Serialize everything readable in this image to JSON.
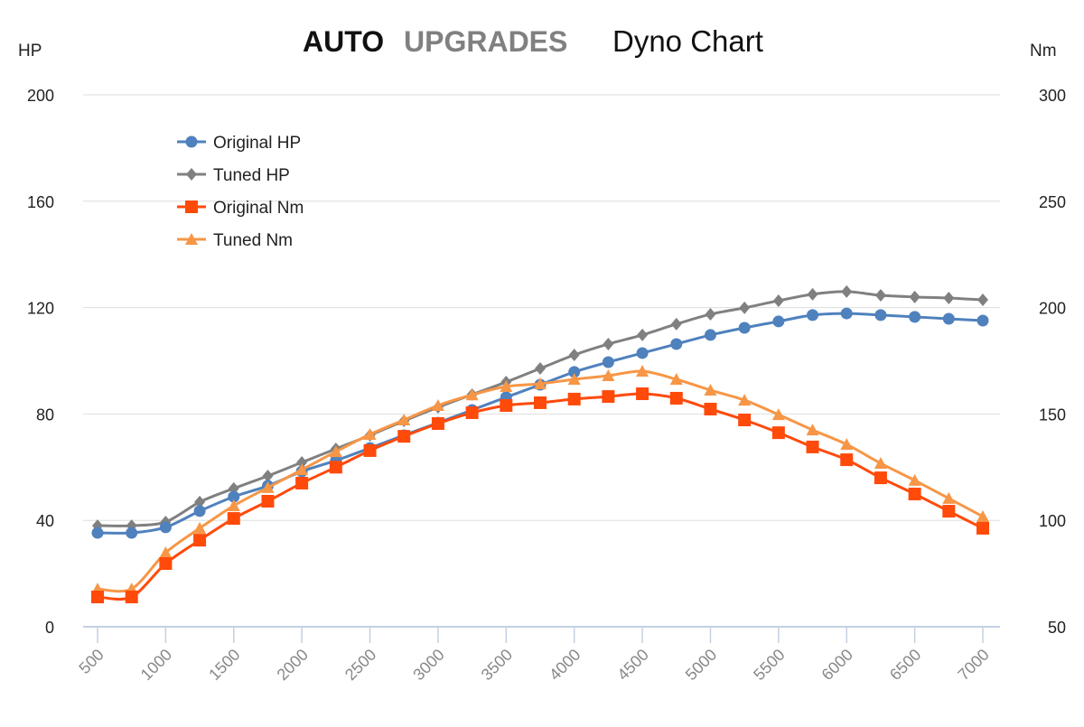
{
  "chart_data": {
    "type": "line",
    "title": {
      "brand_bold": "AUTO",
      "brand_light": "UPGRADES",
      "text": "Dyno Chart"
    },
    "y_left": {
      "label": "HP",
      "range": [
        0,
        200
      ],
      "ticks": [
        0,
        40,
        80,
        120,
        160,
        200
      ]
    },
    "y_right": {
      "label": "Nm",
      "range": [
        50,
        300
      ],
      "ticks": [
        50,
        100,
        150,
        200,
        250,
        300
      ]
    },
    "x": [
      500,
      750,
      1000,
      1250,
      1500,
      1750,
      2000,
      2250,
      2500,
      2750,
      3000,
      3250,
      3500,
      3750,
      4000,
      4250,
      4500,
      4750,
      5000,
      5250,
      5500,
      5750,
      6000,
      6250,
      6500,
      6750,
      7000
    ],
    "x_ticks": [
      500,
      1000,
      1500,
      2000,
      2500,
      3000,
      3500,
      4000,
      4500,
      5000,
      5500,
      6000,
      6500,
      7000
    ],
    "grid": true,
    "legend_position": "top-left",
    "series": [
      {
        "name": "Original HP",
        "axis": "left",
        "marker": "circle",
        "color": "#4f81bd",
        "values": [
          35.3,
          35.3,
          37.4,
          43.5,
          48.9,
          53,
          58.4,
          62.5,
          67.2,
          72,
          76.7,
          81.5,
          86.3,
          91,
          95.8,
          99.5,
          102.9,
          106.3,
          109.7,
          112.4,
          114.8,
          117.2,
          117.8,
          117.2,
          116.5,
          115.8,
          115.1
        ]
      },
      {
        "name": "Tuned HP",
        "axis": "left",
        "marker": "diamond",
        "color": "#808080",
        "values": [
          38,
          38,
          39.4,
          46.9,
          52,
          56.7,
          61.8,
          66.9,
          72,
          77.4,
          82.5,
          87.3,
          92,
          97.1,
          102.2,
          106.3,
          109.7,
          113.8,
          117.5,
          119.9,
          122.6,
          125,
          126,
          124.6,
          124,
          123.6,
          122.9
        ]
      },
      {
        "name": "Original Nm",
        "axis": "right",
        "marker": "square",
        "color": "#ff4a0a",
        "values": [
          64,
          64,
          79.7,
          90.7,
          100.9,
          109,
          117.5,
          125,
          132.8,
          139.5,
          145.5,
          150.6,
          154,
          155.3,
          157,
          158.2,
          159.5,
          157.4,
          152.3,
          147.2,
          141.2,
          134.5,
          128.5,
          120,
          112.4,
          104.3,
          96.3
        ]
      },
      {
        "name": "Tuned Nm",
        "axis": "right",
        "marker": "triangle",
        "color": "#f79646",
        "values": [
          67.8,
          67.8,
          84.8,
          96.3,
          106.9,
          115.4,
          123.8,
          132.3,
          140.4,
          147.2,
          154,
          159,
          162.9,
          164.2,
          166.3,
          168,
          170.1,
          166.3,
          161.2,
          156.5,
          149.7,
          142.5,
          135.7,
          126.8,
          118.8,
          110.3,
          101.8
        ]
      }
    ]
  }
}
